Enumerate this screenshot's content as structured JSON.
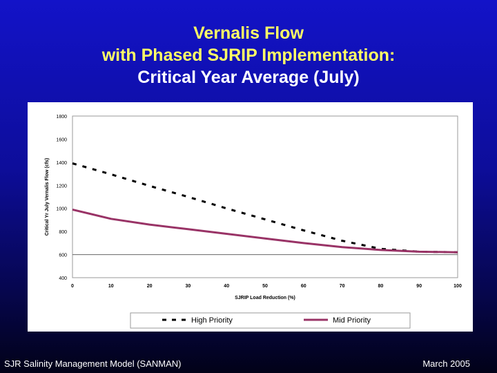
{
  "slide": {
    "title_line1": "Vernalis Flow",
    "title_line2": "with Phased SJRIP Implementation:",
    "title_line3": "Critical Year Average (July)",
    "footer_left": "SJR Salinity Management Model (SANMAN)",
    "footer_right": "March 2005",
    "colors": {
      "background": "#1010b8",
      "title_yellow": "#ffff66",
      "title_white": "#ffffff"
    }
  },
  "chart_data": {
    "type": "line",
    "title": "",
    "xlabel": "SJRIP Load Reduction (%)",
    "ylabel": "Critical Yr July Vernalis Flow (cfs)",
    "xlim": [
      0,
      100
    ],
    "ylim": [
      400,
      1800
    ],
    "xticks": [
      "0",
      "10",
      "20",
      "30",
      "40",
      "50",
      "60",
      "70",
      "80",
      "90",
      "100"
    ],
    "yticks": [
      "400",
      "600",
      "800",
      "1000",
      "1200",
      "1400",
      "1600",
      "1800"
    ],
    "grid": "horizontal at 600",
    "legend_position": "bottom",
    "x": [
      0,
      10,
      20,
      30,
      40,
      50,
      60,
      70,
      80,
      90,
      100
    ],
    "series": [
      {
        "name": "High Priority",
        "style": "dashed",
        "color": "#000000",
        "values": [
          1390,
          1295,
          1195,
          1100,
          1000,
          905,
          810,
          720,
          650,
          625,
          620
        ]
      },
      {
        "name": "Mid Priority",
        "style": "solid",
        "color": "#993366",
        "values": [
          990,
          910,
          860,
          820,
          780,
          740,
          700,
          665,
          640,
          625,
          620
        ]
      }
    ]
  }
}
